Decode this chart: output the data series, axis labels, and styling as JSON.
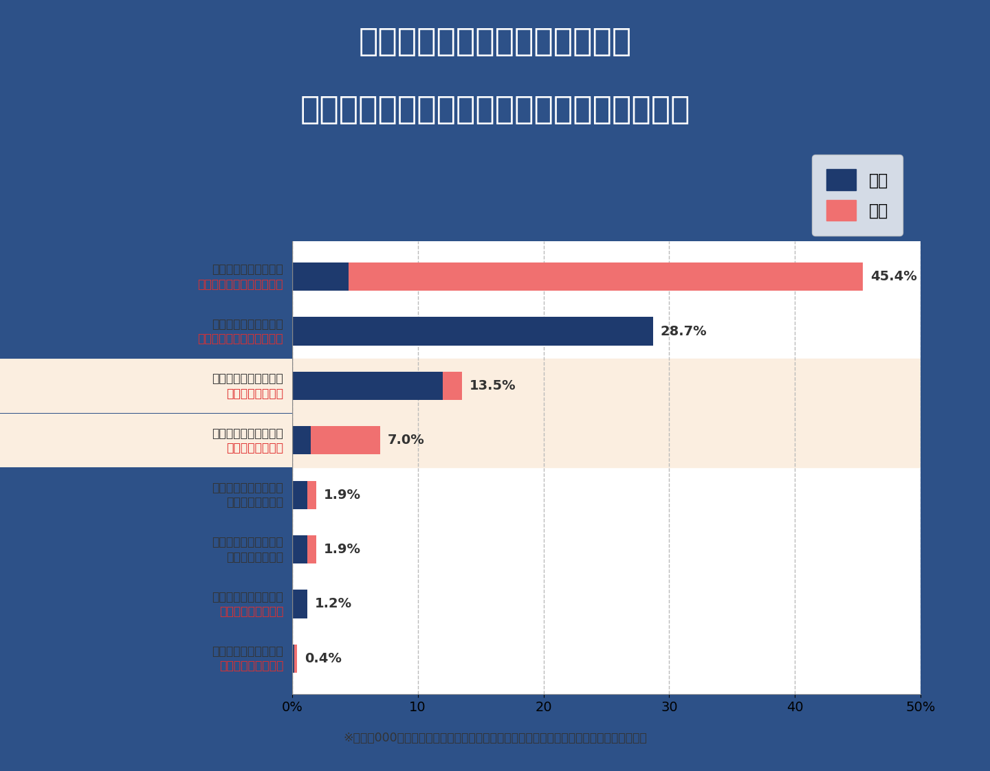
{
  "title_line1": "「単身赴任中の浮気は多い？」",
  "title_line2": "単身赴任中の浮気についてのアンケート結果",
  "title_bg_color": "#2d5188",
  "title_text_color": "#ffffff",
  "chart_bg_color": "#ffffff",
  "border_color": "#cccccc",
  "footnote": "※全国１000人の男女を対象に「単身赴任と浮気や離婚に関するアンケート」の調査を実施",
  "male_color": "#1e3a6e",
  "female_color": "#f07070",
  "highlight_bg": "#fbeee0",
  "legend_male": "男性",
  "legend_female": "女性",
  "categories": [
    {
      "line1": "相手が単身赴任をして",
      "line2": "どちらも浮気をしていない",
      "line1_color": "#333333",
      "line2_color": "#e03030"
    },
    {
      "line1": "自分が単身赴任をして",
      "line2": "どちらも浮気をしていない",
      "line1_color": "#333333",
      "line2_color": "#e03030"
    },
    {
      "line1": "自分が単身赴任をして",
      "line2": "自分が浮気をした",
      "line1_color": "#333333",
      "line2_color": "#e03030",
      "highlight": true
    },
    {
      "line1": "相手が単身赴任をして",
      "line2": "相手が浮気をした",
      "line1_color": "#333333",
      "line2_color": "#e03030",
      "highlight": true
    },
    {
      "line1": "自分が単身赴任をして",
      "line2": "相手が浮気をした",
      "line1_color": "#333333",
      "line2_color": "#333333"
    },
    {
      "line1": "相手が単身赴任をして",
      "line2": "自分が浮気をした",
      "line1_color": "#333333",
      "line2_color": "#333333"
    },
    {
      "line1": "自分が単身赴任をして",
      "line2": "どちらも浮気をした",
      "line1_color": "#333333",
      "line2_color": "#e03030"
    },
    {
      "line1": "相手が単身赴任をして",
      "line2": "どちらも浮気をした",
      "line1_color": "#333333",
      "line2_color": "#e03030"
    }
  ],
  "male_values": [
    4.5,
    28.7,
    12.0,
    1.5,
    1.2,
    1.2,
    1.2,
    0.2
  ],
  "female_values": [
    40.9,
    0.0,
    1.5,
    5.5,
    0.7,
    0.7,
    0.0,
    0.2
  ],
  "totals": [
    45.4,
    28.7,
    13.5,
    7.0,
    1.9,
    1.9,
    1.2,
    0.4
  ],
  "xlim": [
    0,
    50
  ],
  "xticks": [
    0,
    10,
    20,
    30,
    40,
    50
  ],
  "xticklabels": [
    "0%",
    "10",
    "20",
    "30",
    "40",
    "50%"
  ]
}
